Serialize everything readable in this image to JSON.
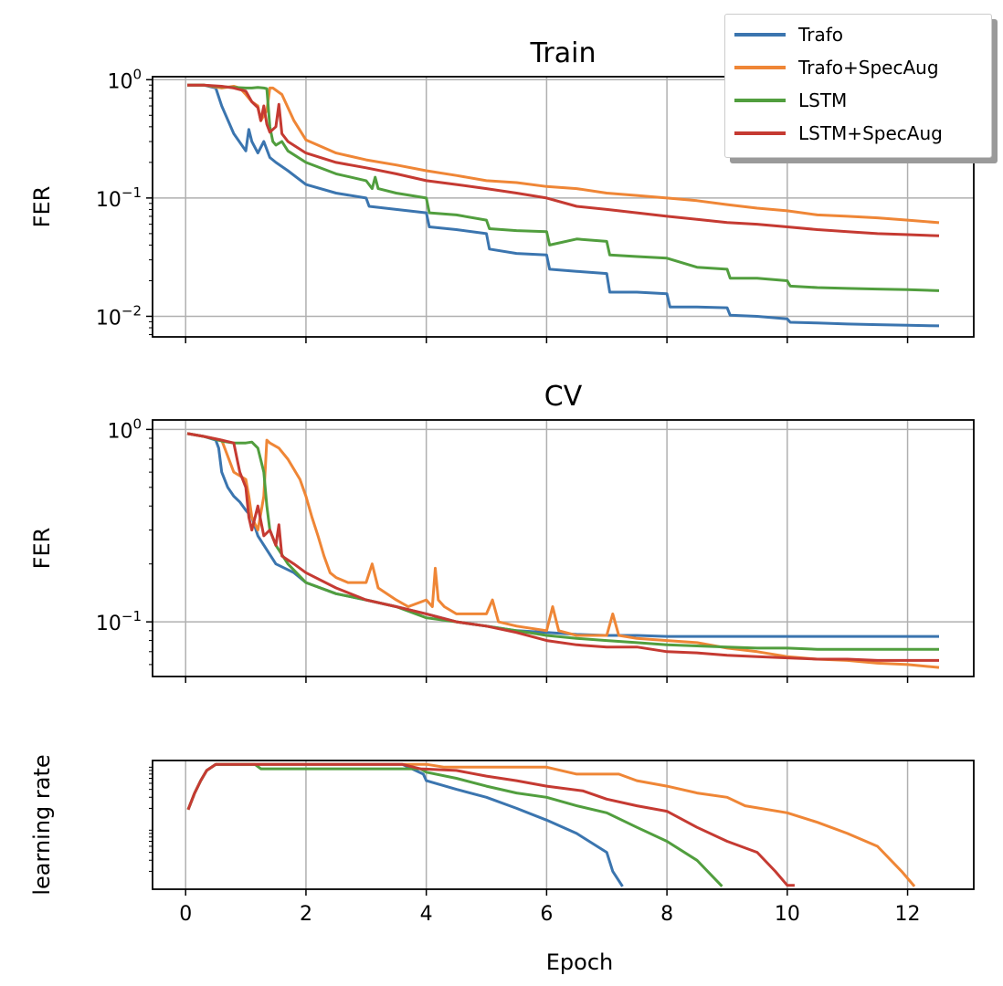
{
  "colors": {
    "Trafo": "#3b75af",
    "Trafo+SpecAug": "#ef8636",
    "LSTM": "#519e3e",
    "LSTM+SpecAug": "#c53a32",
    "grid": "#b0b0b0"
  },
  "legend": {
    "items": [
      {
        "label": "Trafo",
        "color": "#3b75af"
      },
      {
        "label": "Trafo+SpecAug",
        "color": "#ef8636"
      },
      {
        "label": "LSTM",
        "color": "#519e3e"
      },
      {
        "label": "LSTM+SpecAug",
        "color": "#c53a32"
      }
    ]
  },
  "chart_data": [
    {
      "type": "line",
      "title": "Train",
      "xlabel": "",
      "ylabel": "FER",
      "yscale": "log",
      "xlim": [
        -0.55,
        13.1
      ],
      "ylim": [
        0.0067,
        1.06
      ],
      "xticks": [
        0,
        2,
        4,
        6,
        8,
        10,
        12
      ],
      "show_xticklabels": false,
      "yticks": [
        {
          "value": 1,
          "label": "10^0"
        },
        {
          "value": 0.1,
          "label": "10^-1"
        },
        {
          "value": 0.01,
          "label": "10^-2"
        }
      ],
      "grid": true,
      "legend_position": "top-right",
      "series": [
        {
          "name": "Trafo",
          "x": [
            0.05,
            0.3,
            0.5,
            0.6,
            0.8,
            1.0,
            1.05,
            1.1,
            1.2,
            1.3,
            1.4,
            1.5,
            1.7,
            2.0,
            2.5,
            3.0,
            3.05,
            3.5,
            4.0,
            4.05,
            4.5,
            5.0,
            5.05,
            5.5,
            6.0,
            6.05,
            6.5,
            7.0,
            7.05,
            7.5,
            8.0,
            8.05,
            8.5,
            9.0,
            9.05,
            9.5,
            10.0,
            10.05,
            10.5,
            11.0,
            11.5,
            12.0,
            12.5
          ],
          "values": [
            0.9,
            0.9,
            0.85,
            0.6,
            0.35,
            0.25,
            0.38,
            0.3,
            0.24,
            0.3,
            0.22,
            0.2,
            0.17,
            0.13,
            0.11,
            0.1,
            0.085,
            0.08,
            0.075,
            0.057,
            0.054,
            0.05,
            0.037,
            0.034,
            0.033,
            0.025,
            0.024,
            0.023,
            0.016,
            0.016,
            0.0155,
            0.012,
            0.012,
            0.0118,
            0.0102,
            0.01,
            0.0095,
            0.0089,
            0.0088,
            0.0086,
            0.0085,
            0.0084,
            0.0083
          ]
        },
        {
          "name": "Trafo+SpecAug",
          "x": [
            0.05,
            0.3,
            0.6,
            0.8,
            0.9,
            1.0,
            1.1,
            1.2,
            1.25,
            1.35,
            1.4,
            1.45,
            1.6,
            1.8,
            2.0,
            2.5,
            3.0,
            3.5,
            4.0,
            4.5,
            5.0,
            5.5,
            6.0,
            6.5,
            7.0,
            7.5,
            8.0,
            8.5,
            9.0,
            9.5,
            10.0,
            10.5,
            11.0,
            11.5,
            12.0,
            12.5
          ],
          "values": [
            0.9,
            0.9,
            0.85,
            0.88,
            0.85,
            0.75,
            0.65,
            0.6,
            0.45,
            0.55,
            0.85,
            0.85,
            0.75,
            0.45,
            0.31,
            0.24,
            0.21,
            0.19,
            0.17,
            0.155,
            0.14,
            0.135,
            0.125,
            0.12,
            0.11,
            0.105,
            0.1,
            0.095,
            0.088,
            0.082,
            0.078,
            0.072,
            0.07,
            0.068,
            0.065,
            0.062
          ]
        },
        {
          "name": "LSTM",
          "x": [
            0.05,
            0.3,
            0.5,
            0.8,
            1.0,
            1.1,
            1.2,
            1.3,
            1.35,
            1.4,
            1.45,
            1.5,
            1.6,
            1.7,
            2.0,
            2.5,
            3.0,
            3.1,
            3.15,
            3.2,
            3.5,
            4.0,
            4.05,
            4.5,
            5.0,
            5.05,
            5.5,
            6.0,
            6.05,
            6.5,
            7.0,
            7.05,
            7.5,
            8.0,
            8.5,
            9.0,
            9.05,
            9.5,
            10.0,
            10.05,
            10.5,
            11.0,
            11.5,
            12.0,
            12.5
          ],
          "values": [
            0.9,
            0.9,
            0.88,
            0.86,
            0.85,
            0.85,
            0.86,
            0.85,
            0.84,
            0.4,
            0.3,
            0.28,
            0.3,
            0.25,
            0.2,
            0.16,
            0.14,
            0.12,
            0.15,
            0.12,
            0.11,
            0.1,
            0.075,
            0.072,
            0.065,
            0.055,
            0.053,
            0.052,
            0.04,
            0.045,
            0.043,
            0.033,
            0.032,
            0.031,
            0.026,
            0.025,
            0.021,
            0.021,
            0.02,
            0.018,
            0.0175,
            0.0172,
            0.017,
            0.0168,
            0.0165
          ]
        },
        {
          "name": "LSTM+SpecAug",
          "x": [
            0.05,
            0.3,
            0.6,
            0.8,
            1.0,
            1.1,
            1.2,
            1.25,
            1.3,
            1.35,
            1.4,
            1.5,
            1.55,
            1.6,
            1.7,
            2.0,
            2.5,
            3.0,
            3.5,
            4.0,
            4.5,
            5.0,
            5.5,
            6.0,
            6.5,
            7.0,
            7.5,
            8.0,
            8.5,
            9.0,
            9.5,
            10.0,
            10.5,
            11.0,
            11.5,
            12.0,
            12.5
          ],
          "values": [
            0.9,
            0.9,
            0.88,
            0.85,
            0.8,
            0.65,
            0.58,
            0.45,
            0.6,
            0.42,
            0.36,
            0.4,
            0.62,
            0.35,
            0.3,
            0.24,
            0.2,
            0.18,
            0.16,
            0.14,
            0.13,
            0.12,
            0.11,
            0.1,
            0.085,
            0.08,
            0.075,
            0.07,
            0.066,
            0.062,
            0.06,
            0.057,
            0.054,
            0.052,
            0.05,
            0.049,
            0.048
          ]
        }
      ]
    },
    {
      "type": "line",
      "title": "CV",
      "xlabel": "",
      "ylabel": "FER",
      "yscale": "log",
      "xlim": [
        -0.55,
        13.1
      ],
      "ylim": [
        0.052,
        1.12
      ],
      "xticks": [
        0,
        2,
        4,
        6,
        8,
        10,
        12
      ],
      "show_xticklabels": false,
      "yticks": [
        {
          "value": 1,
          "label": "10^0"
        },
        {
          "value": 0.1,
          "label": "10^-1"
        }
      ],
      "grid": true,
      "series": [
        {
          "name": "Trafo",
          "x": [
            0.05,
            0.3,
            0.5,
            0.55,
            0.6,
            0.7,
            0.8,
            0.9,
            1.0,
            1.1,
            1.2,
            1.5,
            1.8,
            2.0,
            2.5,
            3.0,
            3.5,
            4.0,
            4.5,
            5.0,
            5.5,
            6.0,
            6.5,
            7.0,
            7.5,
            8.0,
            8.5,
            9.0,
            9.5,
            10.0,
            10.5,
            11.0,
            11.5,
            12.0,
            12.5
          ],
          "values": [
            0.95,
            0.92,
            0.88,
            0.8,
            0.6,
            0.5,
            0.45,
            0.42,
            0.38,
            0.35,
            0.28,
            0.2,
            0.18,
            0.16,
            0.14,
            0.13,
            0.12,
            0.11,
            0.1,
            0.095,
            0.09,
            0.088,
            0.086,
            0.085,
            0.085,
            0.084,
            0.084,
            0.084,
            0.084,
            0.084,
            0.084,
            0.084,
            0.084,
            0.084,
            0.084
          ]
        },
        {
          "name": "Trafo+SpecAug",
          "x": [
            0.05,
            0.3,
            0.6,
            0.8,
            1.0,
            1.05,
            1.1,
            1.2,
            1.3,
            1.35,
            1.4,
            1.55,
            1.7,
            1.9,
            2.0,
            2.1,
            2.2,
            2.3,
            2.4,
            2.5,
            2.7,
            3.0,
            3.1,
            3.2,
            3.5,
            3.7,
            4.0,
            4.1,
            4.15,
            4.2,
            4.3,
            4.5,
            5.0,
            5.1,
            5.2,
            5.5,
            6.0,
            6.1,
            6.2,
            6.5,
            7.0,
            7.1,
            7.2,
            7.5,
            8.0,
            8.5,
            9.0,
            9.5,
            10.0,
            10.5,
            11.0,
            11.5,
            12.0,
            12.5
          ],
          "values": [
            0.95,
            0.92,
            0.88,
            0.6,
            0.55,
            0.45,
            0.35,
            0.3,
            0.45,
            0.88,
            0.85,
            0.8,
            0.7,
            0.55,
            0.45,
            0.35,
            0.28,
            0.22,
            0.18,
            0.17,
            0.16,
            0.16,
            0.2,
            0.15,
            0.13,
            0.12,
            0.13,
            0.12,
            0.19,
            0.13,
            0.12,
            0.11,
            0.11,
            0.13,
            0.1,
            0.095,
            0.09,
            0.12,
            0.09,
            0.085,
            0.085,
            0.11,
            0.085,
            0.082,
            0.08,
            0.078,
            0.073,
            0.07,
            0.066,
            0.064,
            0.063,
            0.061,
            0.06,
            0.058
          ]
        },
        {
          "name": "LSTM",
          "x": [
            0.05,
            0.3,
            0.6,
            0.8,
            1.0,
            1.1,
            1.2,
            1.3,
            1.35,
            1.4,
            1.5,
            1.7,
            2.0,
            2.5,
            3.0,
            3.5,
            4.0,
            4.5,
            5.0,
            5.5,
            6.0,
            6.5,
            7.0,
            7.5,
            8.0,
            8.5,
            9.0,
            9.5,
            10.0,
            10.5,
            11.0,
            11.5,
            12.0,
            12.5
          ],
          "values": [
            0.95,
            0.92,
            0.87,
            0.85,
            0.85,
            0.86,
            0.8,
            0.6,
            0.4,
            0.3,
            0.25,
            0.2,
            0.16,
            0.14,
            0.13,
            0.12,
            0.105,
            0.1,
            0.095,
            0.09,
            0.085,
            0.082,
            0.08,
            0.078,
            0.076,
            0.075,
            0.074,
            0.073,
            0.073,
            0.072,
            0.072,
            0.072,
            0.072,
            0.072
          ]
        },
        {
          "name": "LSTM+SpecAug",
          "x": [
            0.05,
            0.3,
            0.6,
            0.8,
            0.9,
            1.0,
            1.05,
            1.1,
            1.2,
            1.3,
            1.4,
            1.5,
            1.55,
            1.6,
            1.8,
            2.0,
            2.5,
            3.0,
            3.5,
            4.0,
            4.5,
            5.0,
            5.5,
            6.0,
            6.5,
            7.0,
            7.5,
            8.0,
            8.5,
            9.0,
            9.5,
            10.0,
            10.5,
            11.0,
            11.5,
            12.0,
            12.5
          ],
          "values": [
            0.95,
            0.92,
            0.88,
            0.85,
            0.6,
            0.5,
            0.35,
            0.3,
            0.4,
            0.28,
            0.3,
            0.25,
            0.32,
            0.22,
            0.2,
            0.18,
            0.15,
            0.13,
            0.12,
            0.11,
            0.1,
            0.095,
            0.088,
            0.08,
            0.076,
            0.074,
            0.074,
            0.07,
            0.069,
            0.067,
            0.066,
            0.065,
            0.064,
            0.064,
            0.063,
            0.063,
            0.063
          ]
        }
      ]
    },
    {
      "type": "line",
      "title": "",
      "xlabel": "Epoch",
      "ylabel": "learning rate",
      "yscale": "log",
      "xlim": [
        -0.55,
        13.1
      ],
      "ylim": [
        0.0104,
        1.15
      ],
      "xticks": [
        0,
        2,
        4,
        6,
        8,
        10,
        12
      ],
      "show_xticklabels": true,
      "yticks": [],
      "grid": true,
      "series": [
        {
          "name": "Trafo",
          "x": [
            0.05,
            0.15,
            0.25,
            0.35,
            0.5,
            3.6,
            3.95,
            4.0,
            4.5,
            5.0,
            5.5,
            6.0,
            6.5,
            7.0,
            7.1,
            7.25
          ],
          "values": [
            0.2,
            0.35,
            0.55,
            0.8,
            1.0,
            1.0,
            0.7,
            0.55,
            0.4,
            0.3,
            0.2,
            0.13,
            0.08,
            0.04,
            0.02,
            0.012
          ]
        },
        {
          "name": "Trafo+SpecAug",
          "x": [
            0.05,
            0.15,
            0.25,
            0.35,
            0.5,
            4.0,
            4.3,
            6.0,
            6.5,
            7.2,
            7.5,
            8.0,
            8.5,
            9.0,
            9.3,
            10.0,
            10.5,
            11.0,
            11.5,
            11.9,
            12.1
          ],
          "values": [
            0.2,
            0.35,
            0.55,
            0.8,
            1.0,
            1.0,
            0.9,
            0.9,
            0.7,
            0.7,
            0.55,
            0.45,
            0.35,
            0.3,
            0.22,
            0.17,
            0.12,
            0.08,
            0.05,
            0.02,
            0.012
          ]
        },
        {
          "name": "LSTM",
          "x": [
            0.05,
            0.15,
            0.25,
            0.35,
            0.5,
            1.15,
            1.25,
            3.9,
            4.0,
            4.5,
            5.0,
            5.5,
            6.0,
            6.5,
            7.0,
            7.5,
            8.0,
            8.5,
            8.9
          ],
          "values": [
            0.2,
            0.35,
            0.55,
            0.8,
            1.0,
            1.0,
            0.85,
            0.85,
            0.75,
            0.6,
            0.45,
            0.35,
            0.3,
            0.22,
            0.17,
            0.1,
            0.06,
            0.03,
            0.012
          ]
        },
        {
          "name": "LSTM+SpecAug",
          "x": [
            0.05,
            0.15,
            0.25,
            0.35,
            0.5,
            3.6,
            3.9,
            4.5,
            5.0,
            5.5,
            6.0,
            6.6,
            7.0,
            7.5,
            8.0,
            8.5,
            9.0,
            9.5,
            9.8,
            10.0,
            10.1
          ],
          "values": [
            0.2,
            0.35,
            0.55,
            0.8,
            1.0,
            1.0,
            0.85,
            0.8,
            0.65,
            0.55,
            0.45,
            0.38,
            0.28,
            0.22,
            0.18,
            0.1,
            0.06,
            0.04,
            0.02,
            0.012,
            0.012
          ]
        }
      ]
    }
  ]
}
